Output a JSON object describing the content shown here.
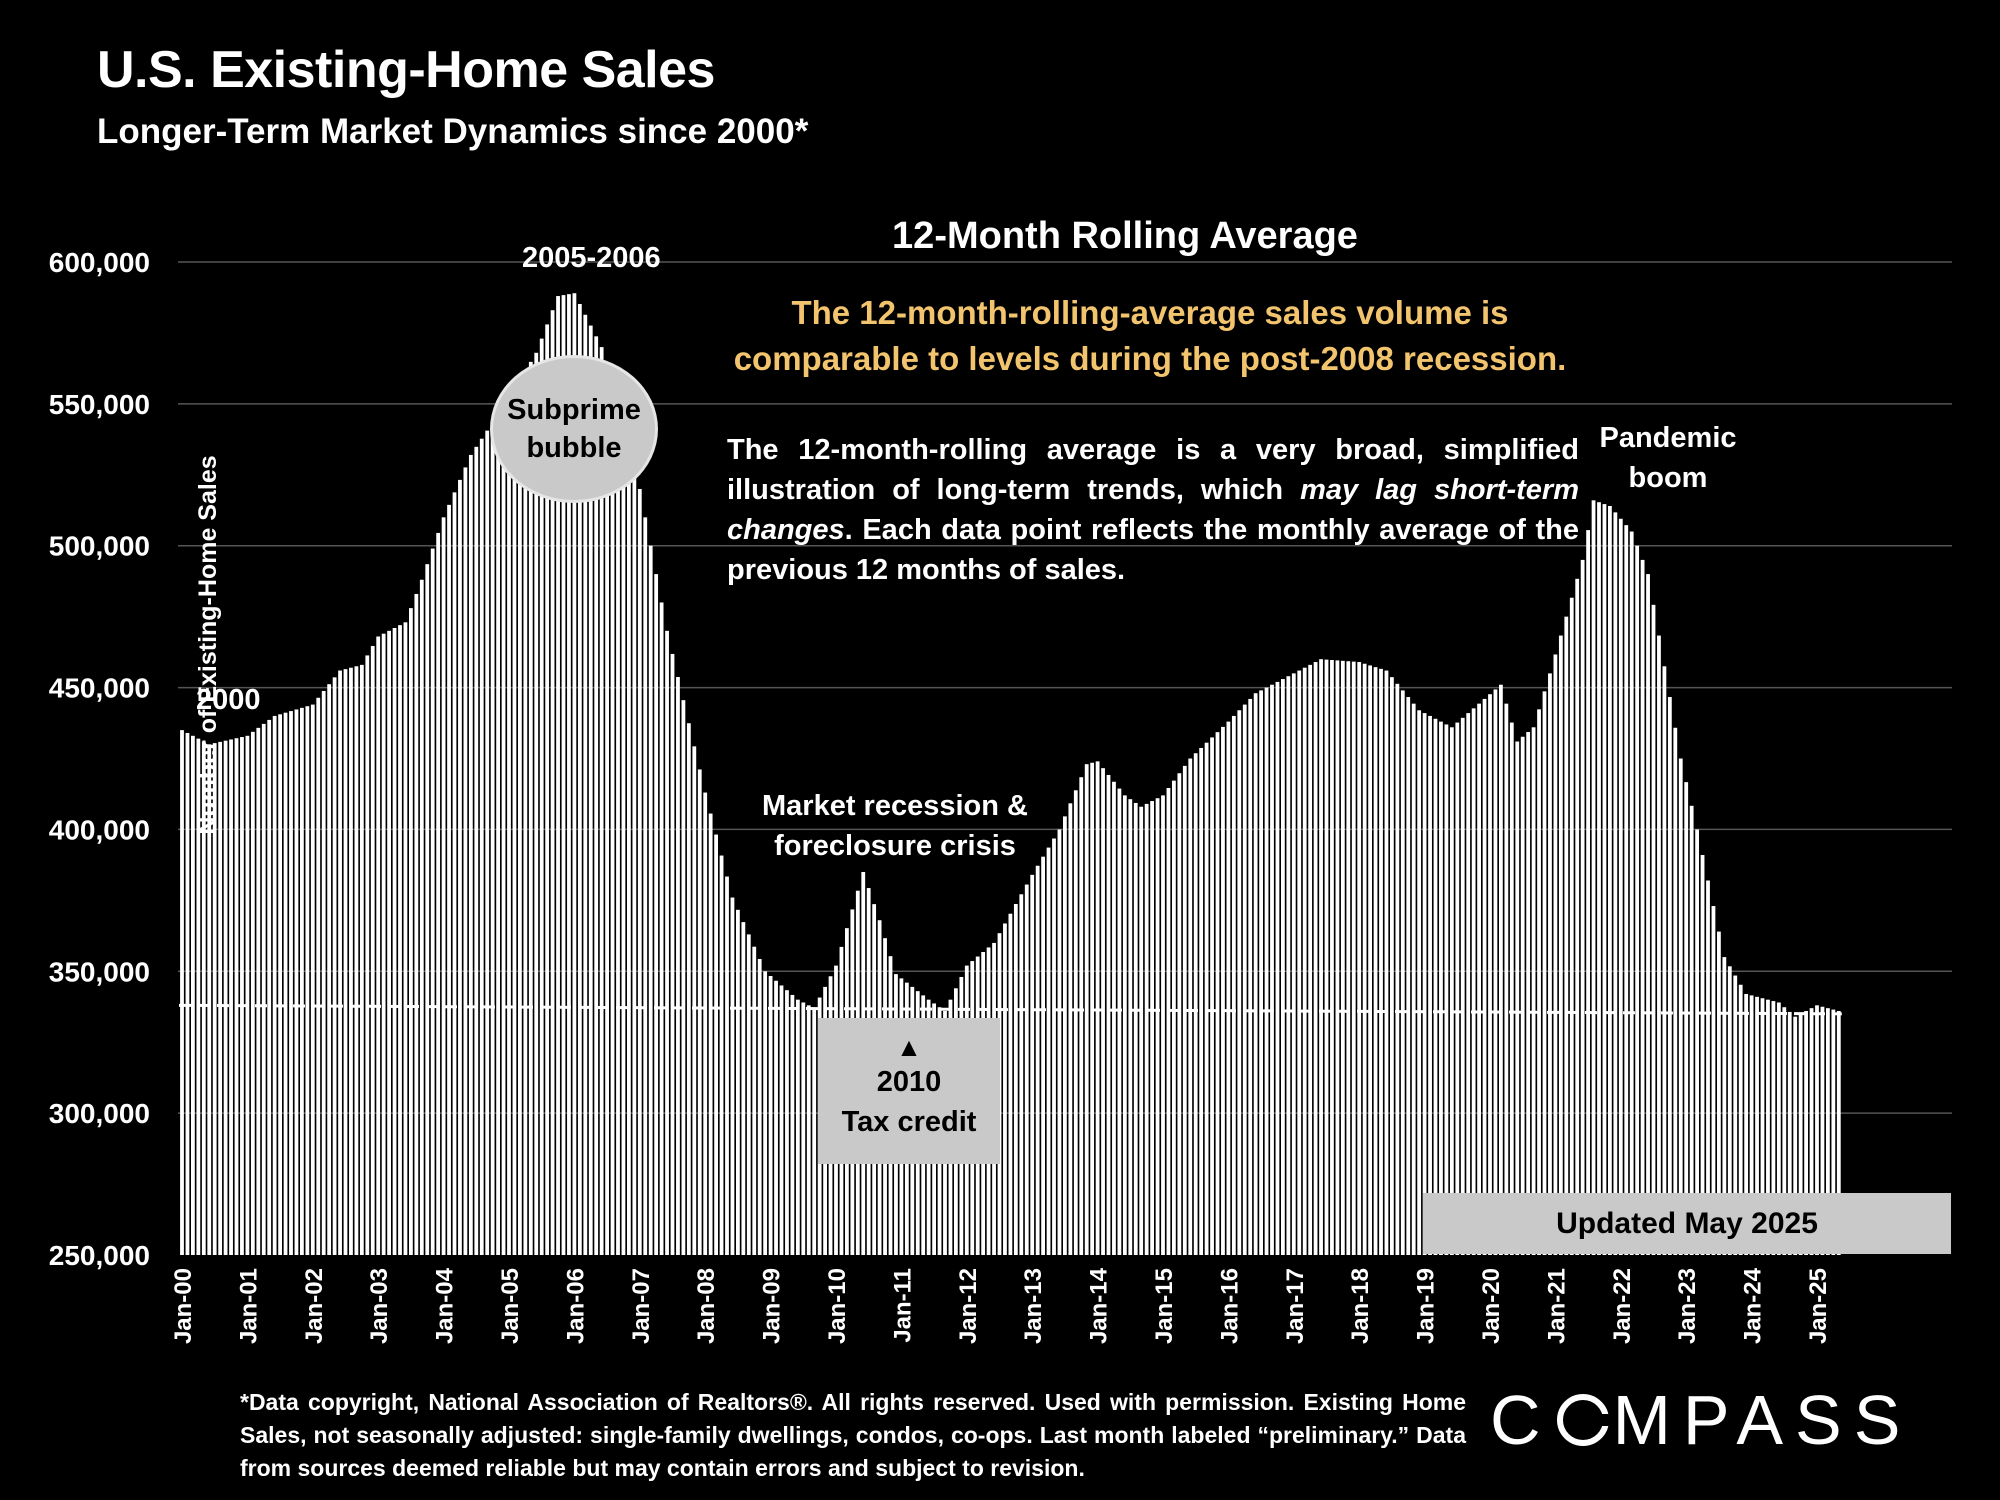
{
  "header": {
    "title": "U.S. Existing-Home Sales",
    "subtitle": "Longer-Term Market Dynamics since 2000*"
  },
  "panel": {
    "chart_title": "12-Month Rolling Average",
    "headline_line1": "The 12-month-rolling-average sales volume is",
    "headline_line2": "comparable to levels during the post-2008 recession.",
    "explain_part1": "The 12-month-rolling average is a very broad, simplified illustration of long-term trends, which ",
    "explain_italic": "may lag short-term changes",
    "explain_part2": ". Each data point reflects the monthly average of the previous 12 months of sales."
  },
  "annotations": {
    "start_label": "2000",
    "peak_label": "2005-2006",
    "bubble_line1": "Subprime",
    "bubble_line2": "bubble",
    "recession_line1": "Market recession &",
    "recession_line2": "foreclosure crisis",
    "tax_marker": "▲",
    "tax_line1": "2010",
    "tax_line2": "Tax credit",
    "pandemic_line1": "Pandemic",
    "pandemic_line2": "boom",
    "updated": "Updated May 2025"
  },
  "footer": {
    "footnote": "*Data copyright, National Association of Realtors®. All rights reserved. Used with permission. Existing Home Sales, not seasonally adjusted: single-family dwellings, condos, co-ops. Last month labeled “preliminary.” Data from sources deemed reliable but may contain errors and subject to revision.",
    "logo_pre": "C",
    "logo_post": "MPASS"
  },
  "colors": {
    "background": "#000000",
    "bar": "#ffffff",
    "headline": "#f2c46d",
    "box": "#c9c9c9",
    "grid": "#555555"
  },
  "chart_data": {
    "type": "bar",
    "title": "12-Month Rolling Average",
    "xlabel": "",
    "ylabel": "Number of Existing-Home Sales",
    "ylim": [
      250000,
      600000
    ],
    "yticks": [
      250000,
      300000,
      350000,
      400000,
      450000,
      500000,
      550000,
      600000
    ],
    "ytick_labels": [
      "250,000",
      "300,000",
      "350,000",
      "400,000",
      "450,000",
      "500,000",
      "550,000",
      "600,000"
    ],
    "xtick_labels": [
      "Jan-00",
      "Jan-01",
      "Jan-02",
      "Jan-03",
      "Jan-04",
      "Jan-05",
      "Jan-06",
      "Jan-07",
      "Jan-08",
      "Jan-09",
      "Jan-10",
      "Jan-11",
      "Jan-12",
      "Jan-13",
      "Jan-14",
      "Jan-15",
      "Jan-16",
      "Jan-17",
      "Jan-18",
      "Jan-19",
      "Jan-20",
      "Jan-21",
      "Jan-22",
      "Jan-23",
      "Jan-24",
      "Jan-25"
    ],
    "grid": true,
    "reference_line": {
      "style": "dashed",
      "start_value": 338000,
      "end_value": 335000
    },
    "period": "Jan-2000 to May-2025, monthly",
    "keypoints": [
      [
        "2000-01",
        435000
      ],
      [
        "2000-06",
        430000
      ],
      [
        "2001-01",
        433000
      ],
      [
        "2001-06",
        440000
      ],
      [
        "2002-01",
        444000
      ],
      [
        "2002-06",
        456000
      ],
      [
        "2002-10",
        458000
      ],
      [
        "2003-01",
        468000
      ],
      [
        "2003-06",
        473000
      ],
      [
        "2003-09",
        488000
      ],
      [
        "2004-01",
        510000
      ],
      [
        "2004-06",
        532000
      ],
      [
        "2005-01",
        552000
      ],
      [
        "2005-06",
        568000
      ],
      [
        "2005-10",
        588000
      ],
      [
        "2006-01",
        589000
      ],
      [
        "2006-06",
        570000
      ],
      [
        "2006-12",
        530000
      ],
      [
        "2007-06",
        470000
      ],
      [
        "2008-01",
        413000
      ],
      [
        "2008-06",
        376000
      ],
      [
        "2008-12",
        350000
      ],
      [
        "2009-06",
        340000
      ],
      [
        "2009-09",
        337000
      ],
      [
        "2010-01",
        352000
      ],
      [
        "2010-06",
        385000
      ],
      [
        "2010-09",
        368000
      ],
      [
        "2010-12",
        349000
      ],
      [
        "2011-06",
        340000
      ],
      [
        "2011-09",
        336000
      ],
      [
        "2012-01",
        352000
      ],
      [
        "2012-06",
        360000
      ],
      [
        "2013-01",
        384000
      ],
      [
        "2013-06",
        400000
      ],
      [
        "2013-11",
        423000
      ],
      [
        "2014-01",
        424000
      ],
      [
        "2014-06",
        412000
      ],
      [
        "2014-09",
        408000
      ],
      [
        "2015-01",
        412000
      ],
      [
        "2015-06",
        425000
      ],
      [
        "2016-01",
        438000
      ],
      [
        "2016-06",
        448000
      ],
      [
        "2017-01",
        455000
      ],
      [
        "2017-06",
        460000
      ],
      [
        "2018-01",
        459000
      ],
      [
        "2018-06",
        456000
      ],
      [
        "2018-12",
        442000
      ],
      [
        "2019-06",
        436000
      ],
      [
        "2019-12",
        446000
      ],
      [
        "2020-03",
        451000
      ],
      [
        "2020-06",
        431000
      ],
      [
        "2020-09",
        436000
      ],
      [
        "2020-12",
        455000
      ],
      [
        "2021-03",
        475000
      ],
      [
        "2021-06",
        495000
      ],
      [
        "2021-08",
        516000
      ],
      [
        "2021-11",
        514000
      ],
      [
        "2022-03",
        505000
      ],
      [
        "2022-06",
        490000
      ],
      [
        "2022-12",
        425000
      ],
      [
        "2023-03",
        400000
      ],
      [
        "2023-08",
        355000
      ],
      [
        "2023-12",
        342000
      ],
      [
        "2024-06",
        339000
      ],
      [
        "2024-09",
        334000
      ],
      [
        "2025-01",
        338000
      ],
      [
        "2025-05",
        336000
      ]
    ]
  }
}
